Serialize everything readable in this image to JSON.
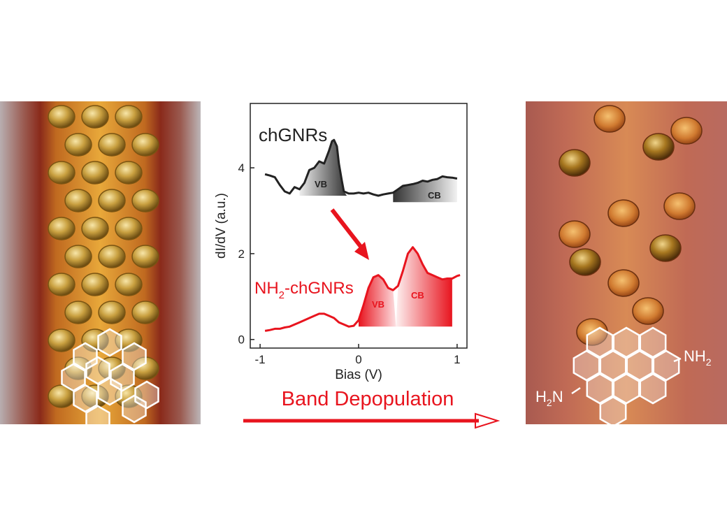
{
  "chart_data": {
    "type": "line",
    "xlabel": "Bias (V)",
    "ylabel": "dI/dV (a.u.)",
    "xlim": [
      -1.1,
      1.1
    ],
    "ylim": [
      -0.2,
      5.5
    ],
    "xticks": [
      -1,
      0,
      1
    ],
    "yticks": [
      0,
      2,
      4
    ],
    "grid": false,
    "series": [
      {
        "name": "chGNRs",
        "color": "#222222",
        "x": [
          -0.95,
          -0.9,
          -0.85,
          -0.8,
          -0.75,
          -0.7,
          -0.65,
          -0.6,
          -0.55,
          -0.5,
          -0.45,
          -0.4,
          -0.35,
          -0.3,
          -0.27,
          -0.25,
          -0.22,
          -0.2,
          -0.17,
          -0.15,
          -0.1,
          -0.05,
          0,
          0.05,
          0.1,
          0.15,
          0.2,
          0.25,
          0.3,
          0.35,
          0.4,
          0.45,
          0.5,
          0.55,
          0.6,
          0.65,
          0.7,
          0.75,
          0.8,
          0.85,
          0.9,
          0.95,
          1.0
        ],
        "y": [
          3.85,
          3.82,
          3.78,
          3.6,
          3.45,
          3.4,
          3.55,
          3.5,
          3.65,
          3.95,
          4.0,
          4.15,
          4.1,
          4.4,
          4.62,
          4.65,
          4.5,
          4.1,
          3.7,
          3.45,
          3.4,
          3.4,
          3.42,
          3.4,
          3.42,
          3.38,
          3.35,
          3.38,
          3.4,
          3.42,
          3.5,
          3.58,
          3.6,
          3.62,
          3.65,
          3.7,
          3.68,
          3.72,
          3.74,
          3.8,
          3.78,
          3.77,
          3.75
        ]
      },
      {
        "name": "NH2-chGNRs",
        "color": "#e8141e",
        "x": [
          -0.95,
          -0.9,
          -0.85,
          -0.8,
          -0.75,
          -0.7,
          -0.65,
          -0.6,
          -0.55,
          -0.5,
          -0.45,
          -0.4,
          -0.35,
          -0.3,
          -0.25,
          -0.2,
          -0.15,
          -0.1,
          -0.05,
          0,
          0.05,
          0.1,
          0.15,
          0.2,
          0.25,
          0.3,
          0.35,
          0.4,
          0.45,
          0.5,
          0.55,
          0.6,
          0.65,
          0.7,
          0.75,
          0.8,
          0.85,
          0.9,
          0.95,
          1.0,
          1.03
        ],
        "y": [
          0.2,
          0.22,
          0.25,
          0.25,
          0.28,
          0.3,
          0.35,
          0.4,
          0.45,
          0.5,
          0.55,
          0.6,
          0.6,
          0.55,
          0.5,
          0.4,
          0.35,
          0.3,
          0.32,
          0.45,
          0.8,
          1.2,
          1.45,
          1.5,
          1.4,
          1.2,
          1.15,
          1.25,
          1.6,
          2.0,
          2.15,
          2.0,
          1.75,
          1.55,
          1.5,
          1.45,
          1.4,
          1.42,
          1.42,
          1.48,
          1.5
        ]
      }
    ],
    "annotations": {
      "series1_label": "chGNRs",
      "series2_label_main": "NH",
      "series2_label_sub": "2",
      "series2_label_rest": "-chGNRs",
      "vb1": "VB",
      "cb1": "CB",
      "vb2": "VB",
      "cb2": "CB"
    },
    "colors": {
      "black": "#222222",
      "red": "#e8141e"
    }
  },
  "caption": "Band Depopulation",
  "right_structure": {
    "nh2_right_main": "NH",
    "nh2_right_sub": "2",
    "nh2_left_main": "H",
    "nh2_left_sub": "2",
    "nh2_left_rest": "N"
  }
}
